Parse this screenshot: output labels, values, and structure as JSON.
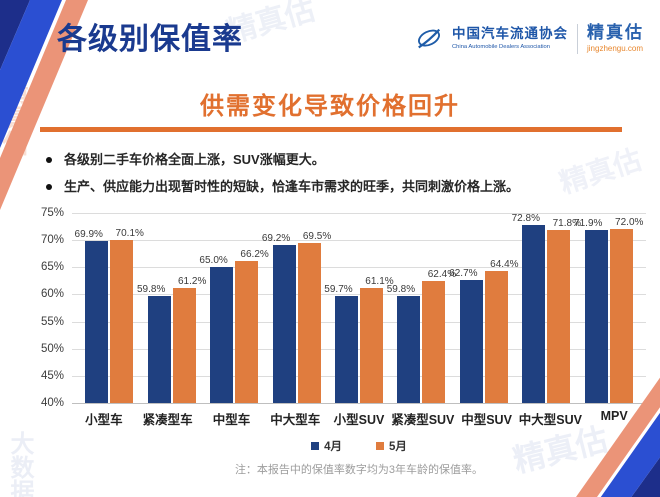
{
  "slide": {
    "title": "各级别保值率",
    "subtitle": "供需变化导致价格回升",
    "bullets": [
      "各级别二手车价格全面上涨，SUV涨幅更大。",
      "生产、供应能力出现暂时性的短缺，恰逢车市需求的旺季，共同刺激价格上涨。"
    ],
    "note": "注：本报告中的保值率数字均为3年车龄的保值率。"
  },
  "logo": {
    "org_cn": "中国汽车流通协会",
    "org_en": "China Automobile Dealers Association",
    "brand": "精真估",
    "brand_site": "jingzhengu.com"
  },
  "watermarks": [
    "精真估",
    "大数据"
  ],
  "chart_data": {
    "type": "bar",
    "categories": [
      "小型车",
      "紧凑型车",
      "中型车",
      "中大型车",
      "小型SUV",
      "紧凑型SUV",
      "中型SUV",
      "中大型SUV",
      "MPV"
    ],
    "series": [
      {
        "name": "4月",
        "color": "#1F4080",
        "values": [
          69.9,
          59.8,
          65.0,
          69.2,
          59.7,
          59.8,
          62.7,
          72.8,
          71.9
        ]
      },
      {
        "name": "5月",
        "color": "#E07C3E",
        "values": [
          70.1,
          61.2,
          66.2,
          69.5,
          61.1,
          62.4,
          64.4,
          71.8,
          72.0
        ]
      }
    ],
    "title": "各级别保值率",
    "xlabel": "",
    "ylabel": "",
    "ylim": [
      40,
      75
    ],
    "ytick_step": 5,
    "ytick_labels": [
      "75%",
      "70%",
      "65%",
      "60%",
      "55%",
      "50%",
      "45%",
      "40%"
    ],
    "grid": true,
    "legend_position": "bottom",
    "value_suffix": "%"
  },
  "colors": {
    "title_navy": "#1A3A8F",
    "accent_orange": "#E1702F",
    "bar_april": "#1F4080",
    "bar_may": "#E07C3E",
    "deco_navy": "#1D2E8A",
    "deco_blue": "#2B4FD2",
    "deco_salmon": "#EB9478",
    "gridline": "#DCDCDC"
  }
}
